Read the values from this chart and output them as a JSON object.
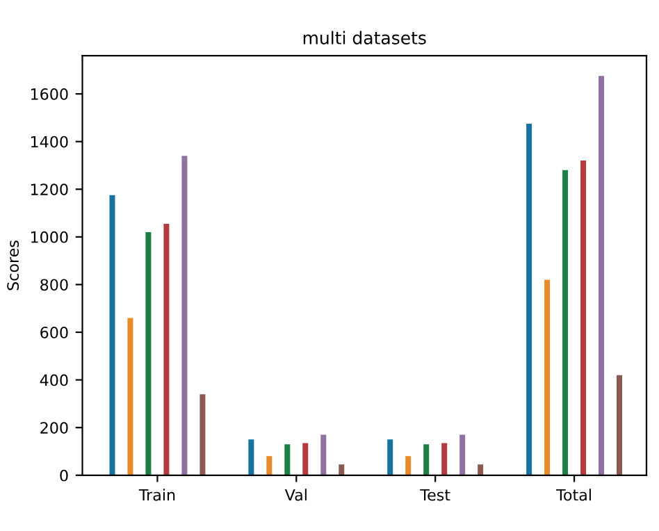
{
  "chart_data": {
    "type": "bar",
    "title": "multi datasets",
    "ylabel": "Scores",
    "categories": [
      "Train",
      "Val",
      "Test",
      "Total"
    ],
    "series": [
      {
        "color": "#17739e",
        "values": [
          1175,
          150,
          150,
          1475
        ]
      },
      {
        "color": "#e8892a",
        "values": [
          660,
          80,
          80,
          820
        ]
      },
      {
        "color": "#1a8044",
        "values": [
          1020,
          130,
          130,
          1280
        ]
      },
      {
        "color": "#b53a3e",
        "values": [
          1055,
          135,
          135,
          1320
        ]
      },
      {
        "color": "#8f72a3",
        "values": [
          1340,
          170,
          170,
          1675
        ]
      },
      {
        "color": "#8a5a50",
        "values": [
          340,
          45,
          45,
          420
        ]
      }
    ],
    "ylim": [
      0,
      1760
    ],
    "yticks": [
      0,
      200,
      400,
      600,
      800,
      1000,
      1200,
      1400,
      1600
    ],
    "grid": false,
    "legend": false
  }
}
